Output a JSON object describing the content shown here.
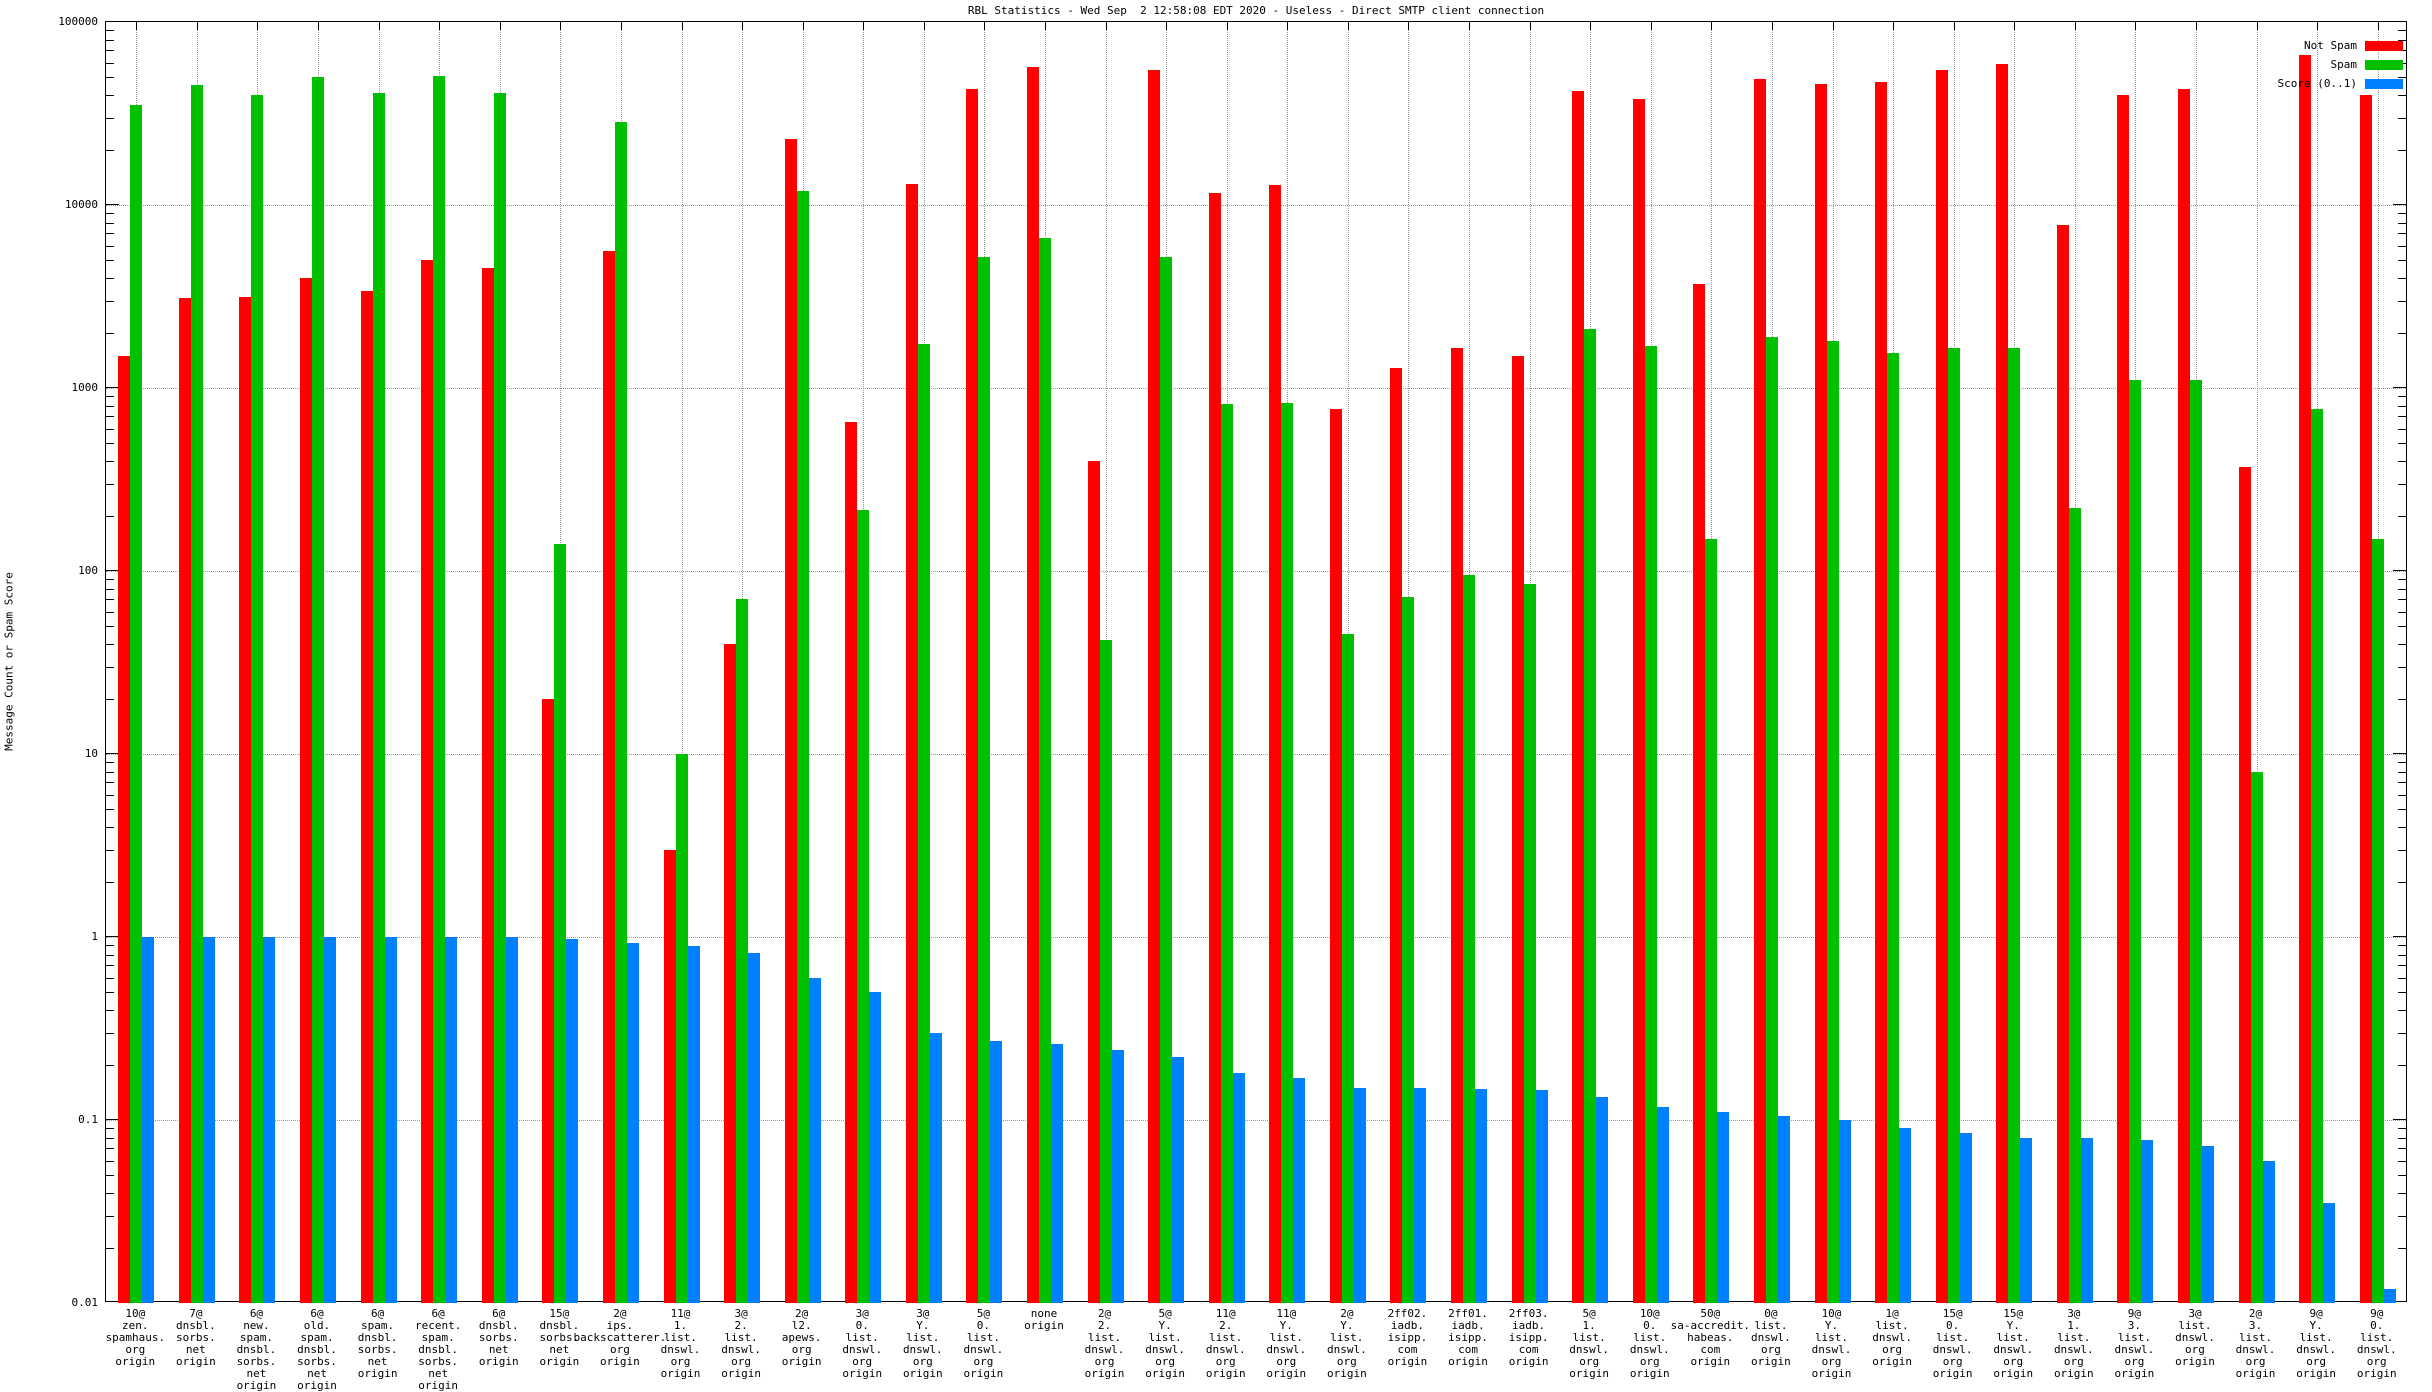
{
  "title": "RBL Statistics - Wed Sep  2 12:58:08 EDT 2020 - Useless - Direct SMTP client connection",
  "y_axis_label": "Message Count or Spam Score",
  "legend": [
    {
      "label": "Not Spam",
      "color": "#ff0000"
    },
    {
      "label": "Spam",
      "color": "#00c000"
    },
    {
      "label": "Score (0..1)",
      "color": "#0080ff"
    }
  ],
  "colors": {
    "not_spam": "#ff0000",
    "spam": "#00c000",
    "score": "#0080ff",
    "grid": "#9a9a9a",
    "axis": "#000000",
    "background": "#ffffff"
  },
  "chart_data": {
    "type": "bar",
    "y_scale": "log",
    "ylim": [
      0.01,
      100000
    ],
    "y_ticks": [
      "100000",
      "10000",
      "1000",
      "100",
      "10",
      "1",
      "0.1",
      "0.01"
    ],
    "grid": true,
    "legend_position": "top-right",
    "categories": [
      [
        "10@",
        "zen.",
        "spamhaus.",
        "org",
        "origin"
      ],
      [
        "7@",
        "dnsbl.",
        "sorbs.",
        "net",
        "origin"
      ],
      [
        "6@",
        "new.",
        "spam.",
        "dnsbl.",
        "sorbs.",
        "net",
        "origin"
      ],
      [
        "6@",
        "old.",
        "spam.",
        "dnsbl.",
        "sorbs.",
        "net",
        "origin"
      ],
      [
        "6@",
        "spam.",
        "dnsbl.",
        "sorbs.",
        "net",
        "origin"
      ],
      [
        "6@",
        "recent.",
        "spam.",
        "dnsbl.",
        "sorbs.",
        "net",
        "origin"
      ],
      [
        "6@",
        "dnsbl.",
        "sorbs.",
        "net",
        "origin"
      ],
      [
        "15@",
        "dnsbl.",
        "sorbs.",
        "net",
        "origin"
      ],
      [
        "2@",
        "ips.",
        "backscatterer.",
        "org",
        "origin"
      ],
      [
        "11@",
        "1.",
        "list.",
        "dnswl.",
        "org",
        "origin"
      ],
      [
        "3@",
        "2.",
        "list.",
        "dnswl.",
        "org",
        "origin"
      ],
      [
        "2@",
        "l2.",
        "apews.",
        "org",
        "origin"
      ],
      [
        "3@",
        "0.",
        "list.",
        "dnswl.",
        "org",
        "origin"
      ],
      [
        "3@",
        "Y.",
        "list.",
        "dnswl.",
        "org",
        "origin"
      ],
      [
        "5@",
        "0.",
        "list.",
        "dnswl.",
        "org",
        "origin"
      ],
      [
        "none",
        "origin"
      ],
      [
        "2@",
        "2.",
        "list.",
        "dnswl.",
        "org",
        "origin"
      ],
      [
        "5@",
        "Y.",
        "list.",
        "dnswl.",
        "org",
        "origin"
      ],
      [
        "11@",
        "2.",
        "list.",
        "dnswl.",
        "org",
        "origin"
      ],
      [
        "11@",
        "Y.",
        "list.",
        "dnswl.",
        "org",
        "origin"
      ],
      [
        "2@",
        "Y.",
        "list.",
        "dnswl.",
        "org",
        "origin"
      ],
      [
        "2ff02.",
        "iadb.",
        "isipp.",
        "com",
        "origin"
      ],
      [
        "2ff01.",
        "iadb.",
        "isipp.",
        "com",
        "origin"
      ],
      [
        "2ff03.",
        "iadb.",
        "isipp.",
        "com",
        "origin"
      ],
      [
        "5@",
        "1.",
        "list.",
        "dnswl.",
        "org",
        "origin"
      ],
      [
        "10@",
        "0.",
        "list.",
        "dnswl.",
        "org",
        "origin"
      ],
      [
        "50@",
        "sa-accredit.",
        "habeas.",
        "com",
        "origin"
      ],
      [
        "0@",
        "list.",
        "dnswl.",
        "org",
        "origin"
      ],
      [
        "10@",
        "Y.",
        "list.",
        "dnswl.",
        "org",
        "origin"
      ],
      [
        "1@",
        "list.",
        "dnswl.",
        "org",
        "origin"
      ],
      [
        "15@",
        "0.",
        "list.",
        "dnswl.",
        "org",
        "origin"
      ],
      [
        "15@",
        "Y.",
        "list.",
        "dnswl.",
        "org",
        "origin"
      ],
      [
        "3@",
        "1.",
        "list.",
        "dnswl.",
        "org",
        "origin"
      ],
      [
        "9@",
        "3.",
        "list.",
        "dnswl.",
        "org",
        "origin"
      ],
      [
        "3@",
        "list.",
        "dnswl.",
        "org",
        "origin"
      ],
      [
        "2@",
        "3.",
        "list.",
        "dnswl.",
        "org",
        "origin"
      ],
      [
        "9@",
        "Y.",
        "list.",
        "dnswl.",
        "org",
        "origin"
      ],
      [
        "9@",
        "0.",
        "list.",
        "dnswl.",
        "org",
        "origin"
      ]
    ],
    "series": [
      {
        "name": "Not Spam",
        "color": "#ff0000",
        "values": [
          1500,
          3100,
          3150,
          4000,
          3400,
          5000,
          4500,
          20,
          5600,
          3,
          40,
          23000,
          650,
          13000,
          43000,
          57000,
          400,
          55000,
          11600,
          12900,
          770,
          1290,
          1650,
          1500,
          42000,
          38000,
          3700,
          49000,
          46000,
          47000,
          55000,
          59000,
          7800,
          40000,
          43000,
          370,
          66000,
          40000
        ]
      },
      {
        "name": "Spam",
        "color": "#00c000",
        "values": [
          35000,
          45000,
          40000,
          50000,
          41000,
          51000,
          41000,
          140,
          28500,
          10,
          70,
          12000,
          215,
          1750,
          5200,
          6600,
          42,
          5200,
          820,
          830,
          45,
          72,
          95,
          85,
          2100,
          1700,
          150,
          1900,
          1800,
          1550,
          1650,
          1650,
          220,
          1100,
          1100,
          8,
          770,
          150
        ]
      },
      {
        "name": "Score (0..1)",
        "color": "#0080ff",
        "values": [
          1.0,
          1.0,
          1.0,
          1.0,
          1.0,
          1.0,
          1.0,
          0.97,
          0.93,
          0.89,
          0.82,
          0.6,
          0.5,
          0.3,
          0.27,
          0.26,
          0.24,
          0.22,
          0.18,
          0.17,
          0.15,
          0.15,
          0.148,
          0.145,
          0.134,
          0.118,
          0.11,
          0.105,
          0.1,
          0.09,
          0.085,
          0.08,
          0.08,
          0.078,
          0.072,
          0.06,
          0.035,
          0.012
        ]
      }
    ]
  }
}
